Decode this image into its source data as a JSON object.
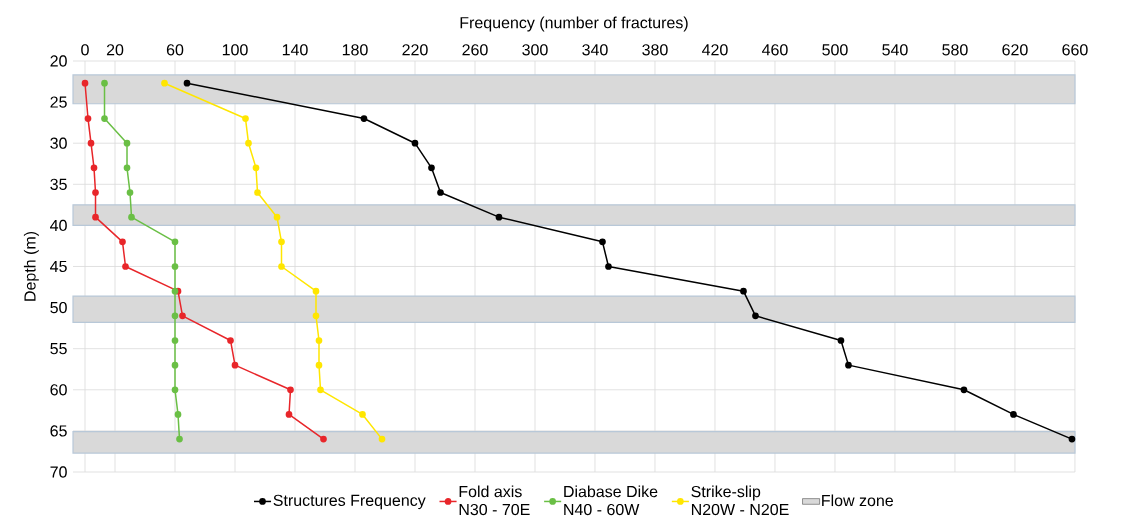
{
  "chart_data": {
    "type": "line",
    "orientation": "horizontal",
    "xlabel": "Frequency (number of fractures)",
    "ylabel": "Depth (m)",
    "x": [
      22.7,
      27,
      30,
      33,
      36,
      39,
      42,
      45,
      48,
      51,
      54,
      57,
      60,
      63,
      66
    ],
    "series": [
      {
        "name": "Structures Frequency",
        "color": "#000000",
        "values": [
          68,
          186,
          220,
          231,
          237,
          276,
          345,
          349,
          439,
          447,
          504,
          509,
          586,
          619,
          658
        ]
      },
      {
        "name": "Fold axis\nN30 - 70E",
        "color": "#e8262a",
        "values": [
          0,
          2,
          4,
          6,
          7,
          7,
          25,
          27,
          62,
          65,
          97,
          100,
          137,
          136,
          159
        ]
      },
      {
        "name": "Diabase Dike\nN40 - 60W",
        "color": "#6abf45",
        "values": [
          13,
          13,
          28,
          28,
          30,
          31,
          60,
          60,
          60,
          60,
          60,
          60,
          60,
          62,
          63
        ]
      },
      {
        "name": "Strike-slip\nN20W - N20E",
        "color": "#ffe600",
        "values": [
          53,
          107,
          109,
          114,
          115,
          128,
          131,
          131,
          154,
          154,
          156,
          156,
          157,
          185,
          198
        ]
      }
    ],
    "bands": [
      {
        "axis": "y",
        "from": 21.7,
        "to": 25.2,
        "label": "Flow zone",
        "color": "#d9d9d9"
      },
      {
        "axis": "y",
        "from": 37.5,
        "to": 40,
        "color": "#d9d9d9"
      },
      {
        "axis": "y",
        "from": 48.6,
        "to": 51.8,
        "color": "#d9d9d9"
      },
      {
        "axis": "y",
        "from": 65.1,
        "to": 67.7,
        "color": "#d9d9d9"
      }
    ],
    "xlim": [
      -8,
      660
    ],
    "xticks": [
      0,
      20,
      60,
      100,
      140,
      180,
      220,
      260,
      300,
      340,
      380,
      420,
      460,
      500,
      540,
      580,
      620,
      660
    ],
    "ylim": [
      70,
      20
    ],
    "yticks": [
      20,
      25,
      30,
      35,
      40,
      45,
      50,
      55,
      60,
      65,
      70
    ],
    "grid": true,
    "marker": "circle",
    "line_style": "solid",
    "legend": "bottom"
  }
}
